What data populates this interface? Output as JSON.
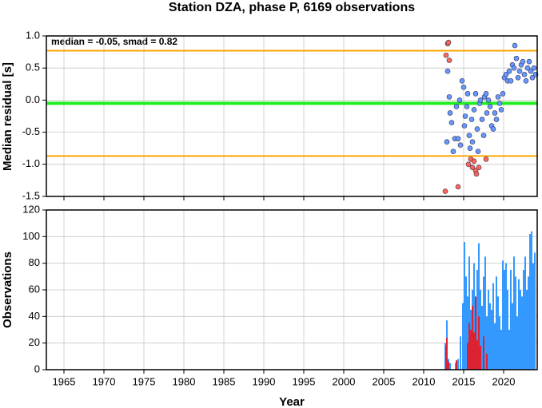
{
  "chart_data": [
    {
      "type": "scatter",
      "title": "Station DZA, phase P, 6169 observations",
      "y_label": "Median residual [s]",
      "annotation": "median = -0.05, smad = 0.82",
      "xlim": [
        1962.8,
        2024.2
      ],
      "xticks": [
        1965,
        1970,
        1975,
        1980,
        1985,
        1990,
        1995,
        2000,
        2005,
        2010,
        2015,
        2020
      ],
      "ylim": [
        -1.5,
        1.0
      ],
      "yticks": [
        {
          "value": 1.0,
          "label": "1.0"
        },
        {
          "value": 0.5,
          "label": "0.5"
        },
        {
          "value": 0.0,
          "label": "0.0"
        },
        {
          "value": -0.5,
          "label": "-0.5"
        },
        {
          "value": -1.0,
          "label": "-1.0"
        },
        {
          "value": -1.5,
          "label": "-1.5"
        }
      ],
      "grid": true,
      "reference_lines": [
        {
          "value": 0.77,
          "color": "#ffa500"
        },
        {
          "value": -0.05,
          "color": "#22ee22"
        },
        {
          "value": -0.87,
          "color": "#ffa500"
        }
      ],
      "series": [
        {
          "color": "#6699ff",
          "x": [
            2012.9,
            2013.0,
            2013.2,
            2013.3,
            2013.5,
            2013.7,
            2013.9,
            2014.1,
            2014.3,
            2014.5,
            2014.6,
            2014.8,
            2015.0,
            2015.1,
            2015.2,
            2015.4,
            2015.5,
            2015.7,
            2015.8,
            2016.0,
            2016.1,
            2016.3,
            2016.5,
            2016.7,
            2016.8,
            2017.0,
            2017.1,
            2017.3,
            2017.5,
            2017.6,
            2017.8,
            2017.9,
            2018.1,
            2018.3,
            2018.5,
            2018.7,
            2018.9,
            2019.1,
            2019.3,
            2019.5,
            2019.7,
            2019.9,
            2020.1,
            2020.3,
            2020.5,
            2020.7,
            2020.9,
            2021.1,
            2021.3,
            2021.4,
            2021.6,
            2021.8,
            2022.0,
            2022.2,
            2022.4,
            2022.6,
            2022.8,
            2023.0,
            2023.2,
            2023.4,
            2023.6,
            2023.8,
            2024.0
          ],
          "values": [
            -0.65,
            0.45,
            0.05,
            -0.2,
            -0.35,
            -0.8,
            -0.6,
            -0.1,
            -0.6,
            0.0,
            -0.7,
            0.3,
            0.2,
            -0.4,
            -0.25,
            -0.1,
            0.1,
            -0.55,
            -0.75,
            -0.3,
            -0.65,
            -0.15,
            0.1,
            -0.45,
            -0.8,
            -0.05,
            0.0,
            -0.3,
            -0.55,
            0.05,
            0.1,
            -0.2,
            0.0,
            -0.1,
            -0.4,
            -0.45,
            -0.2,
            -0.3,
            0.05,
            -0.05,
            -0.15,
            0.1,
            0.35,
            0.4,
            0.3,
            0.45,
            0.3,
            0.55,
            0.5,
            0.85,
            0.65,
            0.35,
            0.45,
            0.55,
            0.6,
            0.4,
            0.3,
            0.5,
            0.6,
            0.45,
            0.35,
            0.5,
            0.4
          ]
        },
        {
          "color": "#ff6655",
          "x": [
            2012.8,
            2013.0,
            2013.1,
            2013.2,
            2012.7,
            2014.3,
            2015.6,
            2015.9,
            2016.1,
            2016.3,
            2016.5,
            2016.6,
            2016.9,
            2017.8
          ],
          "values": [
            0.7,
            0.88,
            0.9,
            0.62,
            -1.42,
            -1.35,
            -1.0,
            -0.92,
            -1.05,
            -0.95,
            -1.1,
            -1.15,
            -1.05,
            -0.92
          ]
        }
      ]
    },
    {
      "type": "bar",
      "x_label": "Year",
      "y_label": "Observations",
      "xlim": [
        1962.8,
        2024.2
      ],
      "xticks": [
        1965,
        1970,
        1975,
        1980,
        1985,
        1990,
        1995,
        2000,
        2005,
        2010,
        2015,
        2020
      ],
      "ylim": [
        0,
        120
      ],
      "yticks": [
        0,
        20,
        40,
        60,
        80,
        100,
        120
      ],
      "grid": true,
      "series": [
        {
          "color": "#3399ff",
          "x": [
            2012.7,
            2012.9,
            2013.1,
            2013.3,
            2014.0,
            2014.3,
            2014.6,
            2014.9,
            2015.1,
            2015.3,
            2015.5,
            2015.7,
            2015.9,
            2016.1,
            2016.3,
            2016.5,
            2016.7,
            2016.9,
            2017.1,
            2017.3,
            2017.5,
            2017.7,
            2017.9,
            2018.1,
            2018.3,
            2018.5,
            2018.7,
            2018.9,
            2019.1,
            2019.3,
            2019.5,
            2019.7,
            2019.9,
            2020.1,
            2020.3,
            2020.5,
            2020.7,
            2020.9,
            2021.1,
            2021.3,
            2021.5,
            2021.7,
            2021.9,
            2022.1,
            2022.3,
            2022.5,
            2022.7,
            2022.9,
            2023.1,
            2023.3,
            2023.5,
            2023.7,
            2023.9
          ],
          "values": [
            20,
            37,
            8,
            5,
            5,
            8,
            25,
            50,
            96,
            70,
            55,
            85,
            45,
            60,
            80,
            40,
            75,
            95,
            60,
            48,
            70,
            85,
            40,
            60,
            50,
            45,
            65,
            35,
            70,
            55,
            40,
            30,
            82,
            75,
            80,
            60,
            30,
            75,
            50,
            85,
            70,
            40,
            68,
            60,
            55,
            75,
            85,
            60,
            70,
            102,
            104,
            80,
            88
          ]
        },
        {
          "color": "#dd2233",
          "x": [
            2012.8,
            2012.9,
            2013.1,
            2014.1,
            2015.5,
            2015.7,
            2015.9,
            2016.1,
            2016.3,
            2016.5,
            2016.7,
            2016.9,
            2017.1,
            2017.5,
            2017.9
          ],
          "values": [
            18,
            24,
            6,
            7,
            20,
            35,
            30,
            48,
            28,
            55,
            22,
            40,
            18,
            25,
            12
          ]
        }
      ]
    }
  ]
}
